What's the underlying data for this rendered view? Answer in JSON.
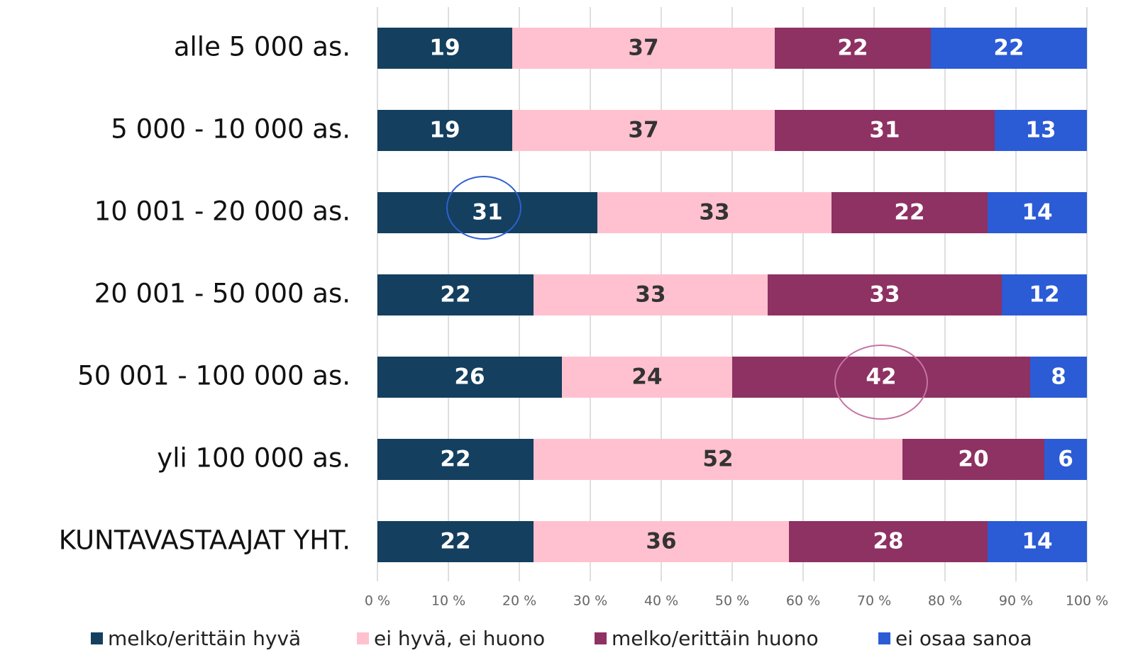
{
  "chart_data": {
    "type": "stacked_barh",
    "categories": [
      "alle 5 000 as.",
      "5 000 - 10 000 as.",
      "10 001 - 20 000 as.",
      "20 001 - 50 000 as.",
      "50 001 - 100 000 as.",
      "yli 100 000 as.",
      "KUNTAVASTAAJAT YHT."
    ],
    "series": [
      {
        "name": "melko/erittäin hyvä",
        "color": "#143f5f",
        "values": [
          19,
          19,
          31,
          22,
          26,
          22,
          22
        ]
      },
      {
        "name": "ei hyvä, ei huono",
        "color": "#ffc1d0",
        "values": [
          37,
          37,
          33,
          33,
          24,
          52,
          36
        ]
      },
      {
        "name": "melko/erittäin huono",
        "color": "#8e3163",
        "values": [
          22,
          31,
          22,
          33,
          42,
          20,
          28
        ]
      },
      {
        "name": "ei osaa sanoa",
        "color": "#2b5bd5",
        "values": [
          22,
          13,
          14,
          12,
          8,
          6,
          14
        ]
      }
    ],
    "xlim": [
      0,
      100
    ],
    "xticks": [
      {
        "value": 0,
        "label": "0 %"
      },
      {
        "value": 10,
        "label": "10 %"
      },
      {
        "value": 20,
        "label": "20 %"
      },
      {
        "value": 30,
        "label": "30 %"
      },
      {
        "value": 40,
        "label": "40 %"
      },
      {
        "value": 50,
        "label": "50 %"
      },
      {
        "value": 60,
        "label": "60 %"
      },
      {
        "value": 70,
        "label": "70 %"
      },
      {
        "value": 80,
        "label": "80 %"
      },
      {
        "value": 90,
        "label": "90 %"
      },
      {
        "value": 100,
        "label": "100 %"
      }
    ],
    "grid": true,
    "legend": "bottom"
  }
}
